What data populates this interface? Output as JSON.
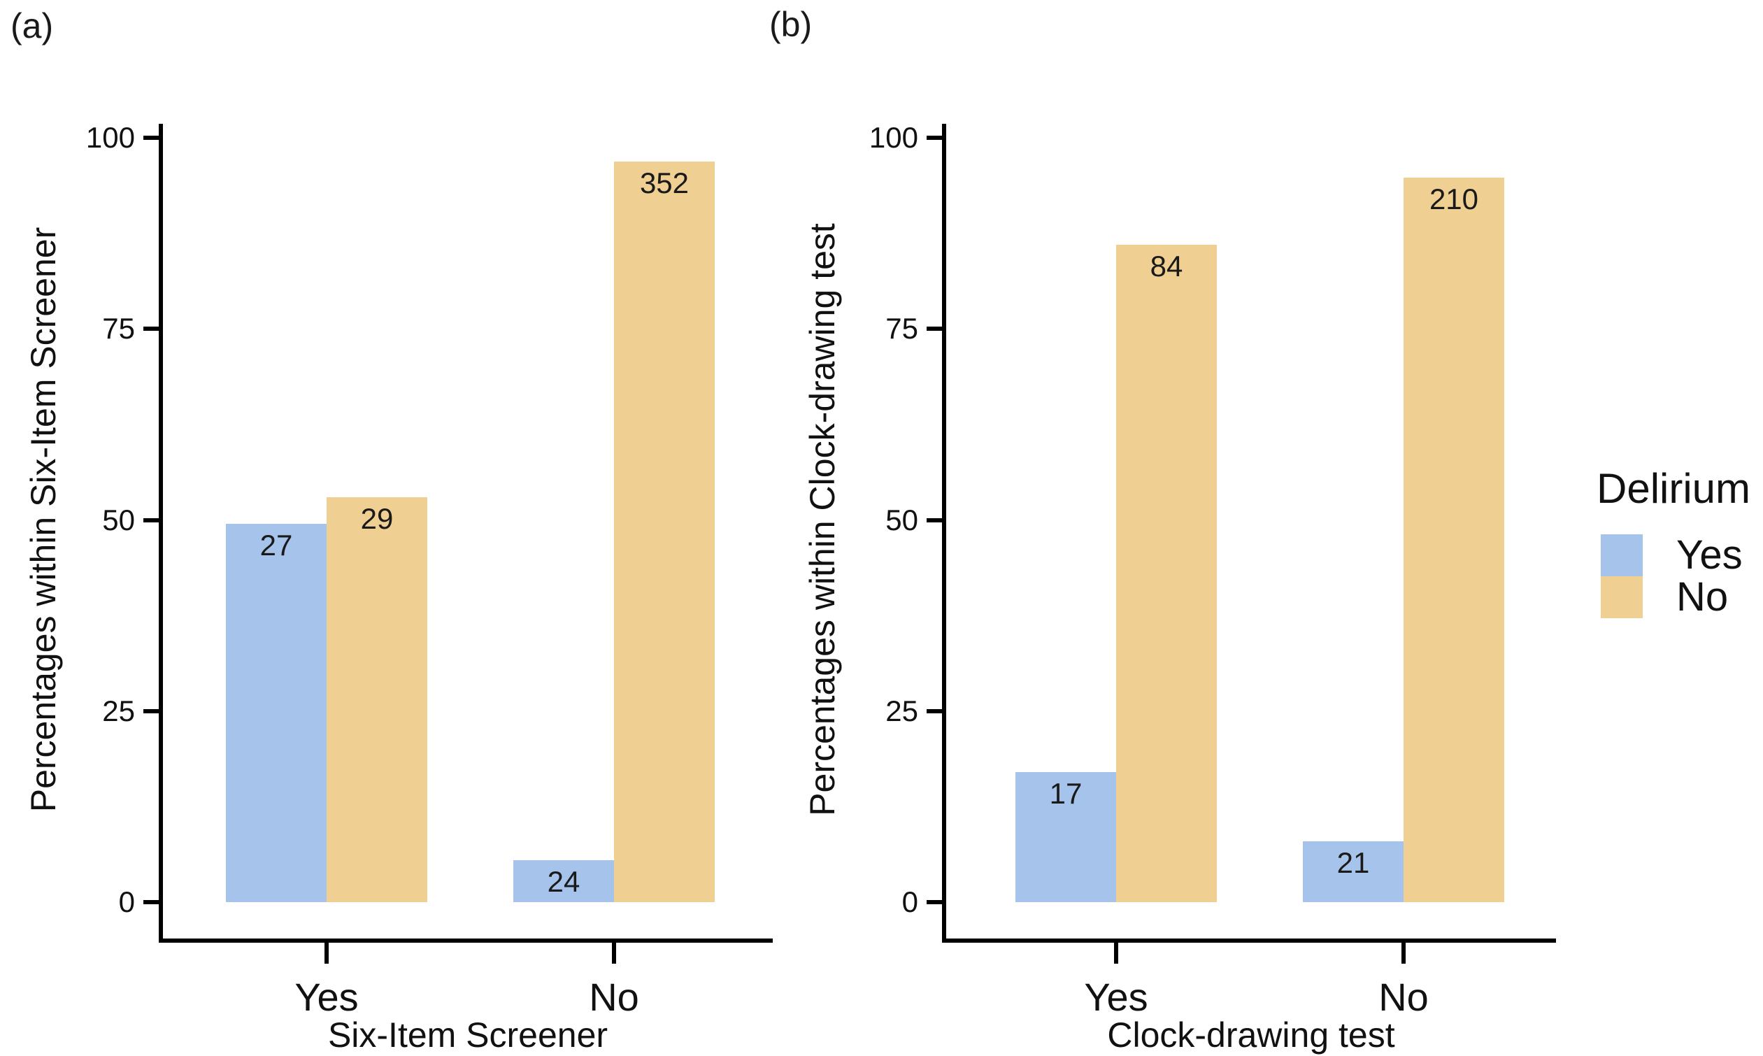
{
  "chart_data": [
    {
      "type": "bar",
      "panel_letter": "(a)",
      "title": "",
      "xlabel": "Six-Item Screener",
      "ylabel": "Percentages within Six-Item Screener",
      "ylim": [
        0,
        100
      ],
      "yticks": [
        0,
        25,
        50,
        75,
        100
      ],
      "grid": "off",
      "categories": [
        "Yes",
        "No"
      ],
      "series": [
        {
          "name": "Yes",
          "color": "#a5c3eb",
          "values_pct": [
            49.5,
            5.5
          ],
          "count_labels": [
            "27",
            "24"
          ]
        },
        {
          "name": "No",
          "color": "#efcf92",
          "values_pct": [
            53.0,
            96.9
          ],
          "count_labels": [
            "29",
            "352"
          ]
        }
      ]
    },
    {
      "type": "bar",
      "panel_letter": "(b)",
      "title": "",
      "xlabel": "Clock-drawing test",
      "ylabel": "Percentages within Clock-drawing test",
      "ylim": [
        0,
        100
      ],
      "yticks": [
        0,
        25,
        50,
        75,
        100
      ],
      "grid": "off",
      "categories": [
        "Yes",
        "No"
      ],
      "series": [
        {
          "name": "Yes",
          "color": "#a5c3eb",
          "values_pct": [
            17.0,
            8.0
          ],
          "count_labels": [
            "17",
            "21"
          ]
        },
        {
          "name": "No",
          "color": "#efcf92",
          "values_pct": [
            86.0,
            94.8
          ],
          "count_labels": [
            "84",
            "210"
          ]
        }
      ]
    }
  ],
  "legend": {
    "title": "Delirium",
    "position": "right",
    "entries": [
      {
        "label": "Yes",
        "color": "#a5c3eb"
      },
      {
        "label": "No",
        "color": "#efcf92"
      }
    ]
  }
}
